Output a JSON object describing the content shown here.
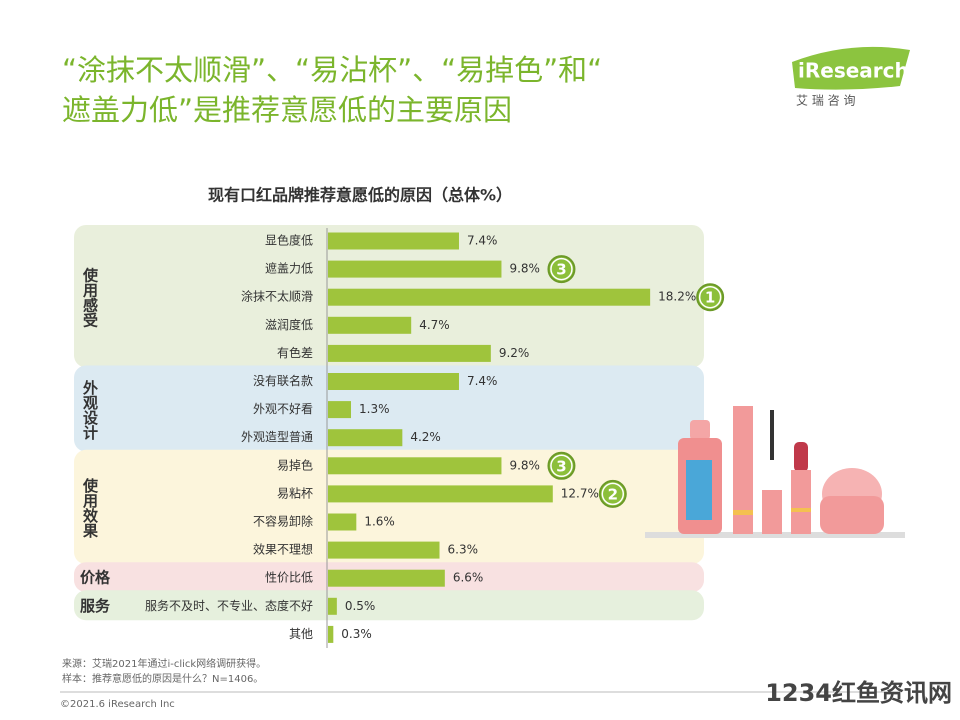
{
  "header": {
    "title_lines": [
      "“涂抹不太顺滑”、“易沾杯”、“易掉色”和“",
      "遮盖力低”是推荐意愿低的主要原因"
    ],
    "logo": "iResearch",
    "logo_sub": "艾 瑞 咨 询"
  },
  "chart_data": {
    "type": "bar",
    "title": "现有口红品牌推荐意愿低的原因（总体%）",
    "color": "#9fc43c",
    "groups": [
      {
        "name": "使用感受",
        "color": "#e9efdc",
        "categories": [
          "显色度低",
          "遮盖力低",
          "涂抹不太顺滑",
          "滋润度低",
          "有色差"
        ],
        "values": [
          7.4,
          9.8,
          18.2,
          4.7,
          9.2
        ],
        "value_labels": [
          "7.4%",
          "9.8%",
          "18.2%",
          "4.7%",
          "9.2%"
        ],
        "ranks": [
          null,
          3,
          1,
          null,
          null
        ]
      },
      {
        "name": "外观设计",
        "color": "#dceaf2",
        "categories": [
          "没有联名款",
          "外观不好看",
          "外观造型普通"
        ],
        "values": [
          7.4,
          1.3,
          4.2
        ],
        "value_labels": [
          "7.4%",
          "1.3%",
          "4.2%"
        ],
        "ranks": [
          null,
          null,
          null
        ]
      },
      {
        "name": "使用效果",
        "color": "#fcf5dc",
        "categories": [
          "易掉色",
          "易粘杯",
          "不容易卸除",
          "效果不理想"
        ],
        "values": [
          9.8,
          12.7,
          1.6,
          6.3
        ],
        "value_labels": [
          "9.8%",
          "12.7%",
          "1.6%",
          "6.3%"
        ],
        "ranks": [
          3,
          2,
          null,
          null
        ]
      },
      {
        "name": "价格",
        "color": "#f8e1e1",
        "categories": [
          "性价比低"
        ],
        "values": [
          6.6
        ],
        "value_labels": [
          "6.6%"
        ],
        "ranks": [
          null
        ]
      },
      {
        "name": "服务",
        "color": "#e6f0dd",
        "categories": [
          "服务不及时、不专业、态度不好"
        ],
        "values": [
          0.5
        ],
        "value_labels": [
          "0.5%"
        ],
        "ranks": [
          null
        ]
      },
      {
        "categories": [
          "其他"
        ],
        "values": [
          0.3
        ],
        "value_labels": [
          "0.3%"
        ],
        "ranks": [
          null
        ]
      }
    ]
  },
  "notes": [
    "来源：艾瑞2021年通过i-click网络调研获得。",
    "样本：推荐意愿低的原因是什么？N=1406。"
  ],
  "footer": "©2021.6 iResearch Inc",
  "watermark": "1234红鱼资讯网"
}
